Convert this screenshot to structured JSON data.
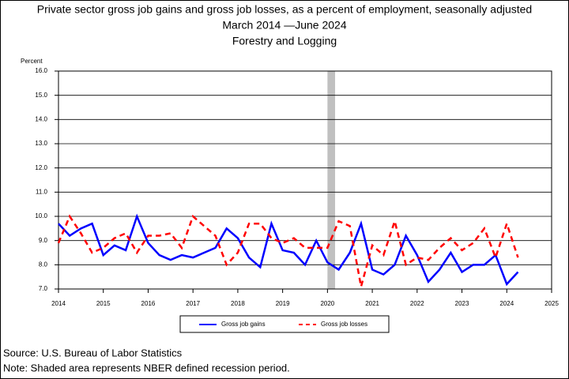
{
  "chart_data": {
    "type": "line",
    "title": "Private sector gross job gains and gross job losses, as a percent of employment, seasonally adjusted",
    "subtitle": "March 2014 —June 2024",
    "subtitle2": "Forestry and Logging",
    "ylabel": "Percent",
    "source": "Source: U.S. Bureau of Labor Statistics",
    "note": "Note: Shaded area represents NBER defined recession period.",
    "x": [
      2014,
      2014.25,
      2014.5,
      2014.75,
      2015,
      2015.25,
      2015.5,
      2015.75,
      2016,
      2016.25,
      2016.5,
      2016.75,
      2017,
      2017.25,
      2017.5,
      2017.75,
      2018,
      2018.25,
      2018.5,
      2018.75,
      2019,
      2019.25,
      2019.5,
      2019.75,
      2020,
      2020.25,
      2020.5,
      2020.75,
      2021,
      2021.25,
      2021.5,
      2021.75,
      2022,
      2022.25,
      2022.5,
      2022.75,
      2023,
      2023.25,
      2023.5,
      2023.75,
      2024,
      2024.25
    ],
    "series": [
      {
        "name": "Gross job gains",
        "color": "#0000ff",
        "dash": false,
        "values": [
          9.7,
          9.2,
          9.5,
          9.7,
          8.4,
          8.8,
          8.6,
          10.0,
          8.9,
          8.4,
          8.2,
          8.4,
          8.3,
          8.5,
          8.7,
          9.5,
          9.1,
          8.3,
          7.9,
          9.7,
          8.6,
          8.5,
          8.0,
          9.0,
          8.1,
          7.8,
          8.5,
          9.7,
          7.8,
          7.6,
          8.0,
          9.2,
          8.4,
          7.3,
          7.8,
          8.5,
          7.7,
          8.0,
          8.0,
          8.4,
          7.2,
          7.7
        ]
      },
      {
        "name": "Gross job losses",
        "color": "#ff0000",
        "dash": true,
        "values": [
          8.9,
          10.0,
          9.3,
          8.5,
          8.7,
          9.1,
          9.3,
          8.5,
          9.2,
          9.2,
          9.3,
          8.7,
          10.0,
          9.6,
          9.2,
          8.0,
          8.5,
          9.7,
          9.7,
          9.1,
          8.9,
          9.1,
          8.7,
          8.7,
          8.7,
          9.8,
          9.6,
          7.1,
          8.8,
          8.4,
          9.8,
          8.0,
          8.3,
          8.2,
          8.7,
          9.1,
          8.6,
          8.9,
          9.5,
          8.3,
          9.7,
          8.3
        ]
      }
    ],
    "recession": [
      2020,
      2020.17
    ],
    "recession_color": "#c0c0c0",
    "xlim": [
      2014,
      2025
    ],
    "xticks": [
      2014,
      2015,
      2016,
      2017,
      2018,
      2019,
      2020,
      2021,
      2022,
      2023,
      2024,
      2025
    ],
    "ylim": [
      7,
      16
    ],
    "yticks": [
      {
        "value": 7,
        "label": "7.0"
      },
      {
        "value": 8,
        "label": "8.0"
      },
      {
        "value": 9,
        "label": "9.0"
      },
      {
        "value": 10,
        "label": "10.0"
      },
      {
        "value": 11,
        "label": "11.0"
      },
      {
        "value": 12,
        "label": "12.0"
      },
      {
        "value": 13,
        "label": "13.0"
      },
      {
        "value": 14,
        "label": "14.0"
      },
      {
        "value": 15,
        "label": "15.0"
      },
      {
        "value": 16,
        "label": "16.0"
      }
    ],
    "grid": true
  }
}
